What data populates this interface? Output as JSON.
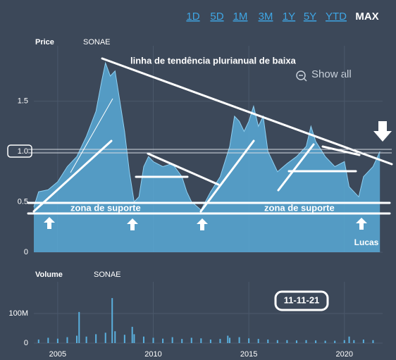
{
  "range_buttons": [
    "1D",
    "5D",
    "1M",
    "3M",
    "1Y",
    "5Y",
    "YTD",
    "MAX"
  ],
  "active_range": "MAX",
  "show_all": "Show all",
  "chart_data": [
    {
      "type": "area",
      "title": "Price",
      "subtitle": "SONAE",
      "color": "#5ab0de",
      "x": [
        2003.75,
        2004.0,
        2004.5,
        2005.0,
        2005.5,
        2006.0,
        2006.5,
        2007.0,
        2007.3,
        2007.5,
        2007.75,
        2008.0,
        2008.25,
        2008.5,
        2008.75,
        2009.0,
        2009.25,
        2009.5,
        2009.75,
        2010.0,
        2010.5,
        2011.0,
        2011.5,
        2011.75,
        2012.0,
        2012.5,
        2013.0,
        2013.5,
        2014.0,
        2014.25,
        2014.5,
        2014.75,
        2015.0,
        2015.25,
        2015.5,
        2015.75,
        2016.0,
        2016.5,
        2017.0,
        2017.5,
        2018.0,
        2018.25,
        2018.5,
        2019.0,
        2019.5,
        2020.0,
        2020.25,
        2020.5,
        2020.75,
        2021.0,
        2021.5,
        2021.86
      ],
      "values": [
        0.45,
        0.6,
        0.62,
        0.7,
        0.85,
        0.95,
        1.15,
        1.4,
        1.7,
        1.88,
        1.75,
        1.8,
        1.5,
        1.2,
        0.8,
        0.5,
        0.55,
        0.85,
        0.95,
        0.9,
        0.85,
        0.88,
        0.75,
        0.6,
        0.5,
        0.42,
        0.6,
        0.75,
        1.05,
        1.35,
        1.3,
        1.2,
        1.3,
        1.45,
        1.25,
        1.35,
        1.0,
        0.8,
        0.88,
        0.95,
        1.05,
        1.25,
        1.1,
        0.95,
        0.85,
        0.9,
        0.65,
        0.6,
        0.55,
        0.75,
        0.85,
        1.0
      ],
      "xlim": [
        2003.75,
        2022.0
      ],
      "xticks": [
        2005,
        2010,
        2015,
        2020
      ],
      "ylim": [
        0,
        2.05
      ],
      "yticks": [
        0,
        0.5,
        {
          "value": 1,
          "label": "1.0"
        },
        1.5
      ],
      "grid": true,
      "annotations": [
        "linha de tendência plurianual de baixa",
        "zona de suporte",
        "zona de suporte",
        "Lucas"
      ]
    },
    {
      "type": "bar",
      "title": "Volume",
      "subtitle": "SONAE",
      "color": "#5ab0de",
      "x": [
        2004.0,
        2004.5,
        2005.0,
        2005.5,
        2006.0,
        2006.12,
        2006.5,
        2007.0,
        2007.5,
        2007.85,
        2008.0,
        2008.5,
        2008.9,
        2009.0,
        2009.5,
        2010.0,
        2010.5,
        2011.0,
        2011.5,
        2012.0,
        2012.5,
        2013.0,
        2013.5,
        2013.9,
        2014.0,
        2014.5,
        2015.0,
        2015.5,
        2016.0,
        2016.5,
        2017.0,
        2017.5,
        2018.0,
        2018.5,
        2019.0,
        2019.5,
        2020.0,
        2020.25,
        2020.5,
        2021.0,
        2021.5
      ],
      "values": [
        12000000,
        18000000,
        15000000,
        20000000,
        25000000,
        105000000,
        22000000,
        30000000,
        35000000,
        152000000,
        40000000,
        28000000,
        55000000,
        30000000,
        22000000,
        18000000,
        15000000,
        20000000,
        14000000,
        18000000,
        16000000,
        12000000,
        14000000,
        25000000,
        18000000,
        20000000,
        16000000,
        14000000,
        12000000,
        10000000,
        10000000,
        9000000,
        10000000,
        9000000,
        8000000,
        8000000,
        10000000,
        22000000,
        10000000,
        12000000,
        10000000
      ],
      "xlim": [
        2003.75,
        2022.0
      ],
      "xticks": [
        2005,
        2010,
        2015,
        2020
      ],
      "ylim": [
        0,
        207000000
      ],
      "yticks": [
        0,
        {
          "value": 100000000,
          "label": "100M"
        }
      ],
      "grid": true,
      "annotations": [
        "11-11-21"
      ]
    }
  ]
}
